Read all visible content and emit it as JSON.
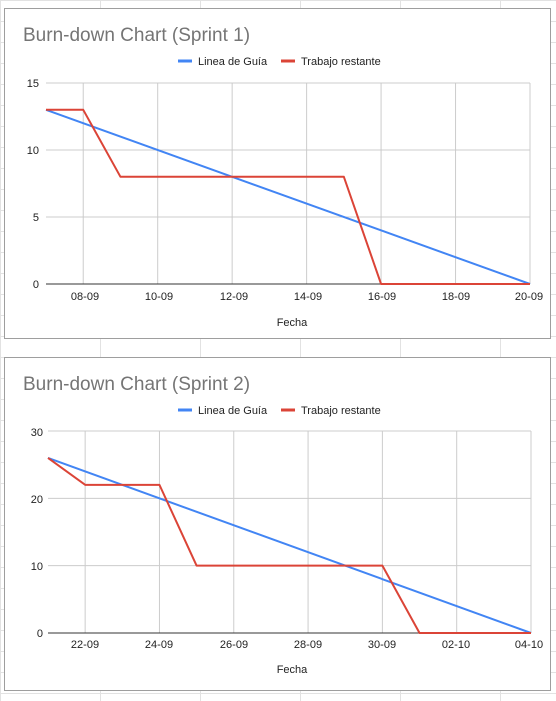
{
  "chart_data": [
    {
      "type": "line",
      "title": "Burn-down Chart (Sprint 1)",
      "xlabel": "Fecha",
      "ylabel": "",
      "legend_position": "top-center",
      "grid": true,
      "x_tick_labels": [
        "08-09",
        "10-09",
        "12-09",
        "14-09",
        "16-09",
        "18-09",
        "20-09"
      ],
      "x_tick_positions": [
        1,
        3,
        5,
        7,
        9,
        11,
        13
      ],
      "xlim": [
        0,
        13
      ],
      "ylim": [
        0,
        15
      ],
      "y_ticks": [
        0,
        5,
        10,
        15
      ],
      "series": [
        {
          "name": "Linea de Guía",
          "color": "#4285f4",
          "x": [
            0,
            13
          ],
          "y": [
            13,
            0
          ]
        },
        {
          "name": "Trabajo restante",
          "color": "#db4437",
          "x": [
            0,
            1,
            2,
            8,
            9,
            13
          ],
          "y": [
            13,
            13,
            8,
            8,
            0,
            0
          ]
        }
      ]
    },
    {
      "type": "line",
      "title": "Burn-down Chart (Sprint 2)",
      "xlabel": "Fecha",
      "ylabel": "",
      "legend_position": "top-center",
      "grid": true,
      "x_tick_labels": [
        "22-09",
        "24-09",
        "26-09",
        "28-09",
        "30-09",
        "02-10",
        "04-10"
      ],
      "x_tick_positions": [
        1,
        3,
        5,
        7,
        9,
        11,
        13
      ],
      "xlim": [
        0,
        13
      ],
      "ylim": [
        0,
        30
      ],
      "y_ticks": [
        0,
        10,
        20,
        30
      ],
      "series": [
        {
          "name": "Linea de Guía",
          "color": "#4285f4",
          "x": [
            0,
            13
          ],
          "y": [
            26,
            0
          ]
        },
        {
          "name": "Trabajo restante",
          "color": "#db4437",
          "x": [
            0,
            1,
            3,
            4,
            9,
            10,
            13
          ],
          "y": [
            26,
            22,
            22,
            10,
            10,
            0,
            0
          ]
        }
      ]
    }
  ]
}
